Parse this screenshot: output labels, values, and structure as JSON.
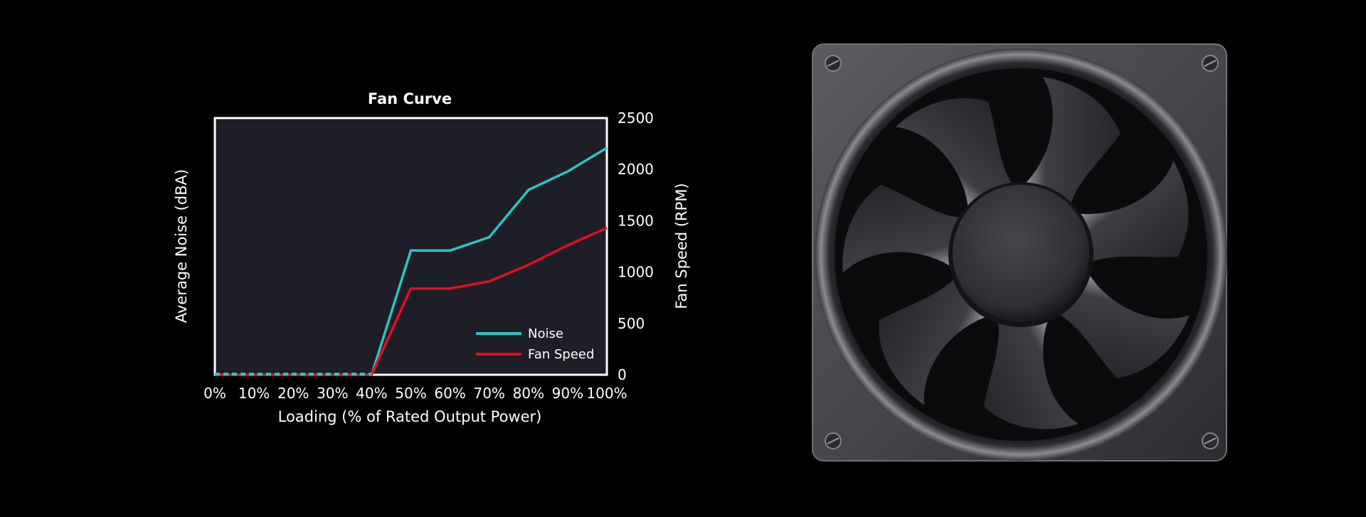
{
  "chart_data": {
    "type": "line",
    "title": "Fan Curve",
    "xlabel": "Loading (% of Rated Output Power)",
    "ylabel_left": "Average Noise (dBA)",
    "ylabel_right": "Fan Speed (RPM)",
    "categories": [
      "0%",
      "10%",
      "20%",
      "30%",
      "40%",
      "50%",
      "60%",
      "70%",
      "80%",
      "90%",
      "100%"
    ],
    "x": [
      0,
      10,
      20,
      30,
      40,
      50,
      60,
      70,
      80,
      90,
      100
    ],
    "y_right_ticks": [
      "0",
      "500",
      "1000",
      "1500",
      "2000",
      "2500"
    ],
    "y_right_lim": [
      0,
      2500
    ],
    "grid": false,
    "legend_position": "bottom-right",
    "series": [
      {
        "name": "Noise",
        "color": "#2ac4c4",
        "axis": "right-scale",
        "values": [
          0,
          0,
          0,
          0,
          0,
          1210,
          1210,
          1340,
          1800,
          1980,
          2210
        ]
      },
      {
        "name": "Fan Speed",
        "color": "#e0101e",
        "axis": "right",
        "values": [
          0,
          0,
          0,
          0,
          0,
          840,
          840,
          910,
          1070,
          1260,
          1430
        ]
      }
    ],
    "colors": {
      "plot_background": "#1e1e28",
      "frame": "#ffffff",
      "page_background": "#000000"
    }
  },
  "image": {
    "icon": "case-fan-icon"
  }
}
